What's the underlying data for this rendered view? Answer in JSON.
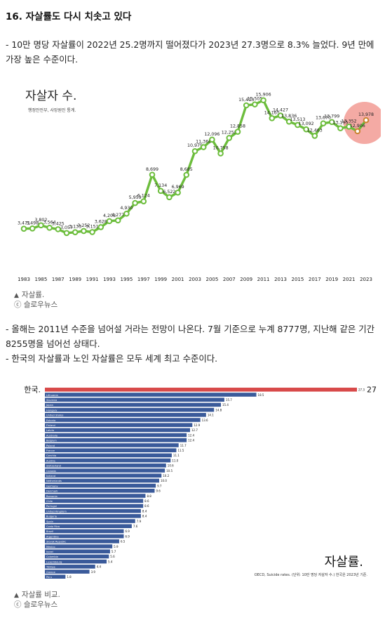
{
  "article": {
    "heading": "16. 자살률도 다시 치솟고 있다",
    "paragraph1": "- 10만 명당 자살률이 2022년 25.2명까지 떨어졌다가 2023년 27.3명으로 8.3% 늘었다. 9년 만에 가장 높은 수준이다.",
    "paragraph2": "- 올해는 2011년 수준을 넘어설 거라는 전망이 나온다. 7월 기준으로 누계 8777명, 지난해 같은 기간 8255명을 넘어선 상태다.",
    "paragraph3": "- 한국의 자살률과 노인 자살률은 모두 세계 최고 수준이다.",
    "caption1_title": "자살률.",
    "caption1_source": "ⓒ 슬로우뉴스",
    "caption2_title": "자살률 비교.",
    "caption2_source": "ⓒ 슬로우뉴스"
  },
  "chart_data": [
    {
      "type": "line",
      "title": "자살자 수.",
      "subtitle": "행정안전부, 사망원인 통계.",
      "x_tick_labels": [
        "1983",
        "1985",
        "1987",
        "1989",
        "1991",
        "1993",
        "1995",
        "1997",
        "1999",
        "2001",
        "2003",
        "2005",
        "2007",
        "2009",
        "2011",
        "2013",
        "2015",
        "2017",
        "2019",
        "2021",
        "2023"
      ],
      "x": [
        1983,
        1984,
        1985,
        1986,
        1987,
        1988,
        1989,
        1990,
        1991,
        1992,
        1993,
        1994,
        1995,
        1996,
        1997,
        1998,
        1999,
        2000,
        2001,
        2002,
        2003,
        2004,
        2005,
        2006,
        2007,
        2008,
        2009,
        2010,
        2011,
        2012,
        2013,
        2014,
        2015,
        2016,
        2017,
        2018,
        2019,
        2020,
        2021,
        2022,
        2023
      ],
      "values": [
        3471,
        3498,
        3802,
        3564,
        3425,
        3057,
        3133,
        3252,
        3151,
        3628,
        4208,
        4277,
        4930,
        5959,
        6124,
        8699,
        7134,
        6522,
        6969,
        8685,
        10979,
        11368,
        12096,
        10758,
        12258,
        12858,
        15413,
        15505,
        15906,
        14165,
        14427,
        13836,
        13513,
        13092,
        12463,
        13670,
        13799,
        13195,
        13352,
        12906,
        13978
      ],
      "point_labels": [
        "3,471",
        "3,498",
        "3,802",
        "3,564",
        "3,425",
        "3,057",
        "3,133",
        "3,252",
        "3,151",
        "3,628",
        "4,208",
        "4,277",
        "4,930",
        "5,959",
        "6,124",
        "8,699",
        "7,134",
        "6,522",
        "6,969",
        "8,685",
        "10,979",
        "11,368",
        "12,096",
        "10,758",
        "12,258",
        "12,858",
        "15,413",
        "15,505",
        "15,906",
        "14,165",
        "14,427",
        "13,836",
        "13,513",
        "13,092",
        "12,463",
        "13,670",
        "13,799",
        "13,195",
        "13,352",
        "12,906",
        "13,978"
      ],
      "ylim": [
        2500,
        16500
      ],
      "highlight_years": [
        2022,
        2023
      ],
      "colors": {
        "line": "#6cbd3c",
        "marker_fill": "#ffffff",
        "highlight": "#ee7c73",
        "text": "#222222"
      }
    },
    {
      "type": "bar",
      "orientation": "horizontal",
      "title": "자살률.",
      "source_note": "OECD, Suicide rates. (단위: 10만 명당 자살자 수.) 한국은 2023년 기준.",
      "highlight_label": "한국.",
      "highlight_value_label": "27.3",
      "categories": [
        "한국",
        "Lithuania",
        "Slovenia",
        "Japan",
        "Hungary",
        "United States",
        "Estonia",
        "Finland",
        "Latvia",
        "Australia",
        "Belgium",
        "Poland",
        "France",
        "Czechia",
        "Austria",
        "Switzerland",
        "Canada",
        "Iceland",
        "Netherlands",
        "Germany",
        "Denmark",
        "Romania",
        "Chile",
        "Portugal",
        "United Kingdom",
        "Bulgaria",
        "Spain",
        "Costa Rica",
        "Brazil",
        "Argentina",
        "Slovak Republic",
        "Mexico",
        "Israel",
        "Colombia",
        "Luxembourg",
        "Türkiye",
        "Greece",
        "Peru"
      ],
      "values": [
        27.3,
        18.5,
        15.7,
        15.4,
        14.8,
        14.1,
        13.6,
        12.9,
        12.7,
        12.4,
        12.4,
        11.7,
        11.5,
        11.1,
        11.0,
        10.6,
        10.5,
        10.2,
        10.0,
        9.7,
        9.6,
        8.8,
        8.6,
        8.6,
        8.4,
        8.4,
        7.9,
        7.6,
        6.9,
        6.9,
        6.5,
        5.9,
        5.7,
        5.6,
        5.4,
        4.4,
        3.9,
        1.8
      ],
      "value_labels": [
        "27.3",
        "18.5",
        "15.7",
        "15.4",
        "14.8",
        "14.1",
        "13.6",
        "12.9",
        "12.7",
        "12.4",
        "12.4",
        "11.7",
        "11.5",
        "11.1",
        "11.0",
        "10.6",
        "10.5",
        "10.2",
        "10.0",
        "9.7",
        "9.6",
        "8.8",
        "8.6",
        "8.6",
        "8.4",
        "8.4",
        "7.9",
        "7.6",
        "6.9",
        "6.9",
        "6.5",
        "5.9",
        "5.7",
        "5.6",
        "5.4",
        "4.4",
        "3.9",
        "1.8"
      ],
      "xlim": [
        0,
        27.3
      ],
      "colors": {
        "bar": "#3a5a9a",
        "highlight": "#d84a4a",
        "label": "#111111"
      }
    }
  ]
}
